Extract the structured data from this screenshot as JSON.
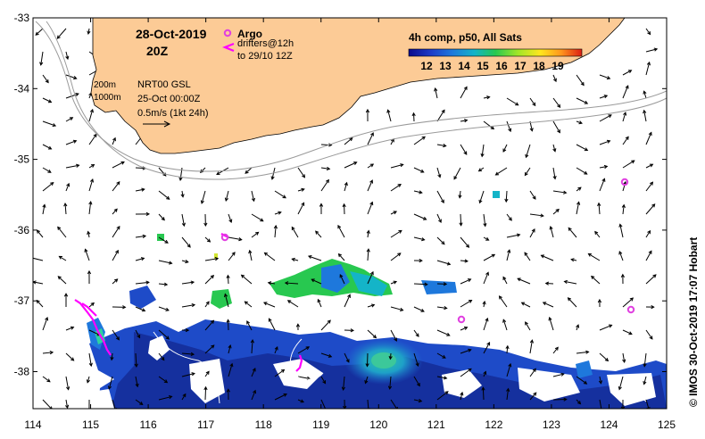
{
  "map": {
    "date": "28-Oct-2019",
    "time": "20Z",
    "x_ticks": [
      "114",
      "115",
      "116",
      "117",
      "118",
      "119",
      "120",
      "121",
      "122",
      "123",
      "124",
      "125"
    ],
    "y_ticks": [
      "-33",
      "-34",
      "-35",
      "-36",
      "-37",
      "-38"
    ],
    "depth_labels": [
      "200m",
      "1000m"
    ],
    "current_product": "NRT00 GSL",
    "current_date": "25-Oct 00:00Z",
    "scale_label": "0.5m/s (1kt 24h)",
    "legend": {
      "argo_label": "Argo",
      "drifter_label": "drifters@12h",
      "drifter_range": "to 29/10 12Z"
    },
    "colorbar": {
      "title": "4h comp, p50, All Sats",
      "labels": [
        "12",
        "13",
        "14",
        "15",
        "16",
        "17",
        "18",
        "19"
      ]
    },
    "credit": "© IMOS 30-Oct-2019 17:07 Hobart"
  },
  "colors": {
    "land": "#FCCB96",
    "argo": "#E040E0",
    "drifter": "#FF00FF",
    "sst_palette": [
      "#0A0A8C",
      "#1E3CC8",
      "#1E78DC",
      "#14B4C8",
      "#28C850",
      "#A0E628",
      "#FFE61E",
      "#FF961E",
      "#DC1E14"
    ]
  }
}
